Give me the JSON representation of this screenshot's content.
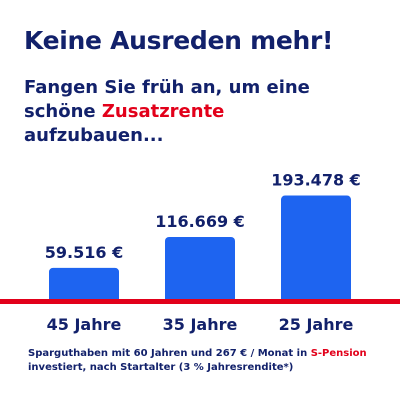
{
  "header": {
    "title": "Keine Ausreden mehr!",
    "subtitle_line1": "Fangen Sie früh an, um eine",
    "subtitle_line2_pre": "schöne ",
    "subtitle_line2_accent": "Zusatzrente",
    "subtitle_line3": "aufzubauen..."
  },
  "colors": {
    "bar": "#1e64f0",
    "baseline": "#e2001a",
    "text": "#12216b",
    "accent": "#e2001a"
  },
  "chart_data": {
    "type": "bar",
    "categories": [
      "45 Jahre",
      "35 Jahre",
      "25 Jahre"
    ],
    "values": [
      59516,
      116669,
      193478
    ],
    "value_labels": [
      "59.516 €",
      "116.669 €",
      "193.478 €"
    ],
    "title": "",
    "xlabel": "",
    "ylabel": "",
    "ylim": [
      0,
      200000
    ],
    "grid": false
  },
  "footnote": {
    "line1_pre": "Sparguthaben mit 60 Jahren und 267 € / Monat in ",
    "line1_accent": "S-Pension",
    "line2": "investiert, nach Startalter (3 % Jahresrendite*)"
  }
}
